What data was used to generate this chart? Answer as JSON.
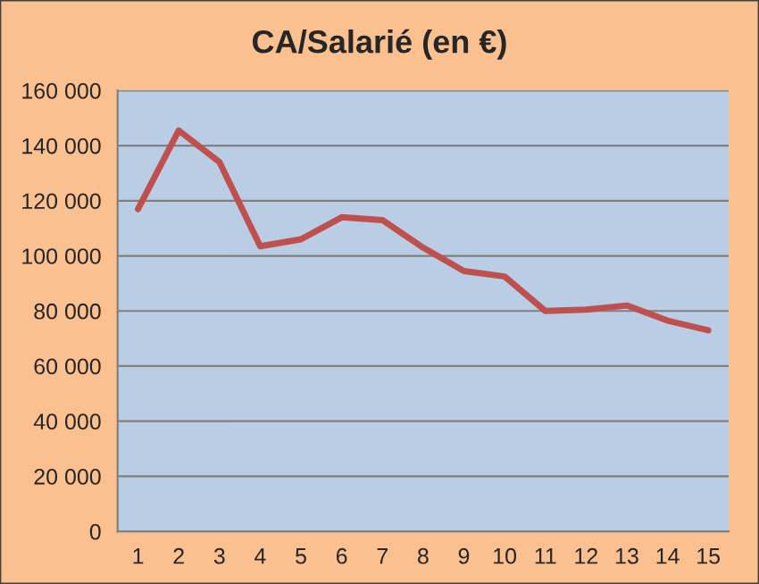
{
  "chart_data": {
    "type": "line",
    "title": "CA/Salarié (en €)",
    "categories": [
      "1",
      "2",
      "3",
      "4",
      "5",
      "6",
      "7",
      "8",
      "9",
      "10",
      "11",
      "12",
      "13",
      "14",
      "15"
    ],
    "series": [
      {
        "color": "#c0504d",
        "values": [
          117000,
          145500,
          134000,
          103500,
          106000,
          114000,
          113000,
          103000,
          94500,
          92500,
          80000,
          80500,
          82000,
          76500,
          73000
        ]
      }
    ],
    "ylim": [
      0,
      160000
    ],
    "yticks": [
      {
        "value": 0,
        "label": "0"
      },
      {
        "value": 20000,
        "label": "20 000"
      },
      {
        "value": 40000,
        "label": "40 000"
      },
      {
        "value": 60000,
        "label": "60 000"
      },
      {
        "value": 80000,
        "label": "80 000"
      },
      {
        "value": 100000,
        "label": "100 000"
      },
      {
        "value": 120000,
        "label": "120 000"
      },
      {
        "value": 140000,
        "label": "140 000"
      },
      {
        "value": 160000,
        "label": "160 000"
      }
    ],
    "grid": "y",
    "legend": false,
    "marker": "none",
    "line_style": "solid"
  }
}
